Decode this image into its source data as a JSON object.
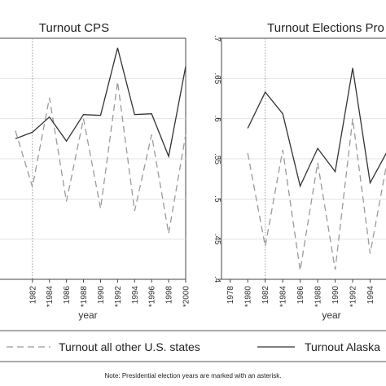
{
  "note": "Note: Presidential election years are marked with an asterisk.",
  "legend": {
    "others_label": "Turnout all other U.S. states",
    "alaska_label": "Turnout Alaska"
  },
  "chart_data": [
    {
      "type": "line",
      "title": "Turnout CPS",
      "xlabel": "year",
      "ylabel": "",
      "x_tick_labels": [
        "1982",
        "*1984",
        "1986",
        "*1988",
        "1990",
        "*1992",
        "1994",
        "*1996",
        "1998",
        "*2000"
      ],
      "x": [
        1980,
        1982,
        1984,
        1986,
        1988,
        1990,
        1992,
        1994,
        1996,
        1998,
        2000
      ],
      "xlim": [
        1978,
        2000
      ],
      "ylim": [
        0.4,
        0.7
      ],
      "vline_x": 1982,
      "series": [
        {
          "name": "Turnout all other U.S. states",
          "style": "dashed",
          "values": [
            0.585,
            0.515,
            0.626,
            0.497,
            0.6,
            0.488,
            0.646,
            0.485,
            0.58,
            0.457,
            0.58
          ]
        },
        {
          "name": "Turnout Alaska",
          "style": "solid",
          "values": [
            0.575,
            0.583,
            0.602,
            0.572,
            0.605,
            0.604,
            0.688,
            0.605,
            0.606,
            0.553,
            0.665
          ]
        }
      ]
    },
    {
      "type": "line",
      "title": "Turnout Elections Pro",
      "xlabel": "year",
      "ylabel": "",
      "y_tick_labels": [
        ".4",
        ".45",
        ".5",
        ".55",
        ".6",
        ".65",
        ".7"
      ],
      "y_ticks": [
        0.4,
        0.45,
        0.5,
        0.55,
        0.6,
        0.65,
        0.7
      ],
      "x_tick_labels": [
        "1978",
        "*1980",
        "1982",
        "*1984",
        "1986",
        "*1988",
        "1990",
        "*1992",
        "1994"
      ],
      "x_ticks": [
        1978,
        1980,
        1982,
        1984,
        1986,
        1988,
        1990,
        1992,
        1994
      ],
      "x": [
        1980,
        1982,
        1984,
        1986,
        1988,
        1990,
        1992,
        1994,
        1996
      ],
      "xlim": [
        1977,
        1996
      ],
      "ylim": [
        0.4,
        0.7
      ],
      "vline_x": 1982,
      "series": [
        {
          "name": "Turnout all other U.S. states",
          "style": "dashed",
          "values": [
            0.557,
            0.441,
            0.561,
            0.411,
            0.545,
            0.412,
            0.6,
            0.432,
            0.55
          ]
        },
        {
          "name": "Turnout Alaska",
          "style": "solid",
          "values": [
            0.588,
            0.633,
            0.606,
            0.516,
            0.563,
            0.534,
            0.663,
            0.52,
            0.56
          ]
        }
      ]
    }
  ]
}
